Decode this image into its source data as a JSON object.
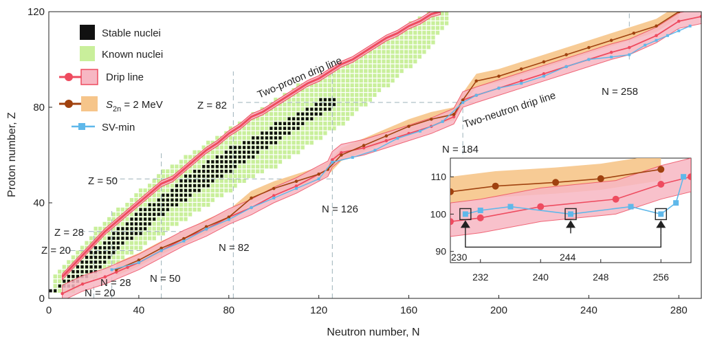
{
  "chart_data": {
    "type": "scatter",
    "xlabel": "Neutron number, N",
    "ylabel": "Proton number, Z",
    "xlim": [
      0,
      290
    ],
    "ylim": [
      0,
      120
    ],
    "xticks": [
      "0",
      "40",
      "80",
      "120",
      "160",
      "200",
      "240",
      "280"
    ],
    "yticks": [
      "0",
      "40",
      "80",
      "120"
    ],
    "legend": {
      "position": "top-left",
      "items": [
        {
          "label": "Stable nuclei",
          "marker": "black-square",
          "color": "#111111"
        },
        {
          "label": "Known nuclei",
          "marker": "green-square",
          "color": "#c9ef9b"
        },
        {
          "label": "Drip line",
          "marker": "red-circle-band",
          "color": "#ee4b5f"
        },
        {
          "label_main": "S",
          "label_sub": "2n",
          "label_rest": " = 2 MeV",
          "marker": "brown-circle-band",
          "color": "#a0420f"
        },
        {
          "label": "SV-min",
          "marker": "blue-square",
          "color": "#5fb8ea"
        }
      ]
    },
    "annotations": {
      "two_proton": "Two-proton drip line",
      "two_neutron": "Two-neutron drip line",
      "z82": "Z = 82",
      "z50": "Z = 50",
      "z28": "Z = 28",
      "z20": "Z = 20",
      "n20": "N = 20",
      "n28": "N = 28",
      "n50": "N = 50",
      "n82": "N = 82",
      "n126": "N = 126",
      "n184": "N = 184",
      "n258": "N = 258"
    },
    "magic_numbers": {
      "Z": [
        20,
        28,
        50,
        82
      ],
      "N": [
        20,
        28,
        50,
        82,
        126,
        184,
        258
      ]
    },
    "series": [
      {
        "name": "Stable nuclei",
        "band": [
          [
            0,
            1,
            2
          ],
          [
            10,
            4,
            10
          ],
          [
            20,
            10,
            20
          ],
          [
            30,
            20,
            28
          ],
          [
            40,
            26,
            36
          ],
          [
            50,
            34,
            42
          ],
          [
            60,
            40,
            50
          ],
          [
            70,
            46,
            56
          ],
          [
            80,
            52,
            62
          ],
          [
            90,
            58,
            66
          ],
          [
            100,
            64,
            72
          ],
          [
            110,
            70,
            76
          ],
          [
            120,
            76,
            82
          ],
          [
            126,
            79,
            83
          ]
        ]
      },
      {
        "name": "Known nuclei",
        "band": [
          [
            1,
            1,
            8
          ],
          [
            10,
            2,
            16
          ],
          [
            20,
            8,
            28
          ],
          [
            30,
            14,
            36
          ],
          [
            40,
            20,
            44
          ],
          [
            50,
            26,
            52
          ],
          [
            60,
            32,
            58
          ],
          [
            70,
            38,
            64
          ],
          [
            80,
            44,
            70
          ],
          [
            90,
            50,
            76
          ],
          [
            100,
            54,
            82
          ],
          [
            110,
            60,
            88
          ],
          [
            120,
            66,
            92
          ],
          [
            130,
            72,
            96
          ],
          [
            140,
            80,
            102
          ],
          [
            150,
            88,
            108
          ],
          [
            160,
            96,
            114
          ],
          [
            170,
            106,
            120
          ],
          [
            176,
            114,
            120
          ]
        ]
      },
      {
        "name": "Two-proton drip line",
        "x": [
          6,
          10,
          15,
          20,
          25,
          30,
          35,
          40,
          45,
          50,
          55,
          60,
          65,
          70,
          75,
          80,
          85,
          90,
          95,
          100,
          105,
          110,
          115,
          120,
          125,
          130,
          135,
          140,
          145,
          150,
          155,
          160,
          165,
          170,
          174
        ],
        "y": [
          9,
          13,
          18,
          23,
          28,
          32,
          36,
          40,
          44,
          48,
          50,
          54,
          58,
          62,
          65,
          69,
          72,
          76,
          78,
          81,
          84,
          87,
          90,
          92,
          95,
          98,
          100,
          103,
          106,
          109,
          111,
          114,
          116,
          119,
          120
        ]
      },
      {
        "name": "Two-neutron drip line",
        "x": [
          6,
          15,
          25,
          30,
          35,
          40,
          50,
          60,
          70,
          80,
          90,
          100,
          110,
          120,
          124,
          126,
          130,
          140,
          150,
          160,
          170,
          180,
          184,
          190,
          200,
          210,
          220,
          230,
          240,
          250,
          258,
          270,
          280,
          290
        ],
        "y": [
          2,
          6,
          9,
          11,
          13,
          15,
          20,
          25,
          29,
          34,
          38,
          43,
          47,
          52,
          54,
          58,
          61,
          63,
          66,
          69,
          72,
          76,
          83,
          85,
          88,
          91,
          94,
          97,
          100,
          103,
          105,
          110,
          116,
          118
        ]
      },
      {
        "name": "S2n = 2 MeV",
        "x": [
          30,
          40,
          50,
          60,
          70,
          80,
          90,
          100,
          110,
          120,
          124,
          130,
          140,
          150,
          160,
          170,
          180,
          184,
          190,
          200,
          210,
          220,
          230,
          240,
          250,
          260,
          270,
          280
        ],
        "y": [
          12,
          16,
          21,
          25,
          30,
          34,
          42,
          46,
          49,
          52,
          54,
          60,
          64,
          68,
          72,
          75,
          77,
          83,
          91,
          93,
          96,
          99,
          102,
          105,
          108,
          111,
          114,
          120
        ]
      },
      {
        "name": "SV-min",
        "x": [
          28,
          40,
          50,
          60,
          70,
          80,
          90,
          100,
          110,
          120,
          126,
          135,
          145,
          155,
          165,
          175,
          184,
          190,
          200,
          210,
          220,
          230,
          240,
          250,
          258,
          265,
          270,
          275,
          280,
          285
        ],
        "y": [
          12,
          15,
          20,
          24,
          29,
          33,
          38,
          42,
          46,
          50,
          57,
          59,
          62,
          67,
          70,
          74,
          82,
          85,
          88,
          90,
          93,
          97,
          100,
          101,
          102,
          106,
          108,
          110,
          112,
          114
        ]
      }
    ],
    "inset": {
      "xlim": [
        228,
        260
      ],
      "ylim": [
        87,
        115
      ],
      "xticks": [
        "232",
        "240",
        "248",
        "256"
      ],
      "yticks": [
        "90",
        "100",
        "110"
      ],
      "drip_line": {
        "x": [
          228,
          232,
          240,
          250,
          256,
          260
        ],
        "y": [
          98,
          99,
          102,
          104,
          108,
          110
        ]
      },
      "s2n_2mev": {
        "x": [
          228,
          234,
          242,
          248,
          256
        ],
        "y": [
          106,
          107.5,
          108.5,
          109.5,
          112
        ]
      },
      "sv_min": {
        "x": [
          230,
          232,
          236,
          244,
          252,
          256,
          258,
          259
        ],
        "y": [
          100,
          101,
          102,
          100,
          102,
          100,
          103,
          110
        ]
      },
      "highlighted_N": [
        "230",
        "244",
        "256"
      ]
    }
  }
}
